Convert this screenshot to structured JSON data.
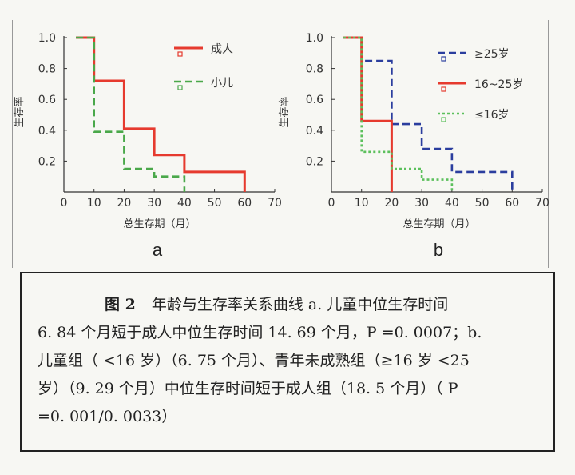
{
  "chart_data": [
    {
      "id": "a",
      "type": "line",
      "step": true,
      "panel_label": "a",
      "title": "",
      "xlabel": "总生存期（月）",
      "ylabel": "生存率",
      "xlim": [
        0,
        70
      ],
      "ylim": [
        0,
        1.0
      ],
      "x_ticks": [
        0,
        10,
        20,
        30,
        40,
        50,
        60,
        70
      ],
      "y_ticks": [
        0.2,
        0.4,
        0.6,
        0.8,
        1.0
      ],
      "x_tick_labels": [
        "0",
        "10",
        "20",
        "30",
        "40",
        "50",
        "60",
        "70"
      ],
      "y_tick_labels": [
        "0.2",
        "0.4",
        "0.6",
        "0.8",
        "1.0"
      ],
      "grid": false,
      "legend_position": "top-right",
      "series": [
        {
          "name": "成人",
          "color": "#e63a2e",
          "dash": "solid",
          "x": [
            4,
            10,
            10,
            20,
            20,
            30,
            30,
            40,
            40,
            60,
            60
          ],
          "y": [
            1.0,
            1.0,
            0.72,
            0.72,
            0.41,
            0.41,
            0.24,
            0.24,
            0.13,
            0.13,
            0
          ]
        },
        {
          "name": "小儿",
          "color": "#4aa84a",
          "dash": "dashed",
          "x": [
            4,
            10,
            10,
            20,
            20,
            30,
            30,
            40,
            40
          ],
          "y": [
            1.0,
            1.0,
            0.39,
            0.39,
            0.15,
            0.15,
            0.1,
            0.1,
            0
          ]
        }
      ]
    },
    {
      "id": "b",
      "type": "line",
      "step": true,
      "panel_label": "b",
      "title": "",
      "xlabel": "总生存期（月）",
      "ylabel": "生存率",
      "xlim": [
        0,
        70
      ],
      "ylim": [
        0,
        1.0
      ],
      "x_ticks": [
        0,
        10,
        20,
        30,
        40,
        50,
        60,
        70
      ],
      "y_ticks": [
        0.2,
        0.4,
        0.6,
        0.8,
        1.0
      ],
      "x_tick_labels": [
        "0",
        "10",
        "20",
        "30",
        "40",
        "50",
        "60",
        "70"
      ],
      "y_tick_labels": [
        "0.2",
        "0.4",
        "0.6",
        "0.8",
        "1.0"
      ],
      "grid": false,
      "legend_position": "top-right",
      "series": [
        {
          "name": "≥25岁",
          "color": "#2b3e9e",
          "dash": "dashed",
          "x": [
            4,
            10,
            10,
            20,
            20,
            30,
            30,
            40,
            40,
            60,
            60
          ],
          "y": [
            1.0,
            1.0,
            0.85,
            0.85,
            0.44,
            0.44,
            0.28,
            0.28,
            0.13,
            0.13,
            0
          ]
        },
        {
          "name": "16~25岁",
          "color": "#e63a2e",
          "dash": "solid",
          "x": [
            4,
            10,
            10,
            20,
            20
          ],
          "y": [
            1.0,
            1.0,
            0.46,
            0.46,
            0
          ]
        },
        {
          "name": "≤16岁",
          "color": "#5cc05c",
          "dash": "dotted",
          "x": [
            4,
            10,
            10,
            20,
            20,
            30,
            30,
            40,
            40
          ],
          "y": [
            1.0,
            1.0,
            0.26,
            0.26,
            0.15,
            0.15,
            0.08,
            0.08,
            0
          ]
        }
      ]
    }
  ],
  "caption": {
    "lead": "图 2",
    "lines": [
      "年龄与生存率关系曲线 a. 儿童中位生存时间",
      "6. 84 个月短于成人中位生存时间 14. 69 个月，P =0. 0007；b.",
      "儿童组（ <16 岁）（6. 75 个月）、青年未成熟组（≥16 岁 <25",
      "岁）（9. 29 个月）中位生存时间短于成人组（18. 5 个月）（ P",
      "=0. 001/0. 0033）"
    ]
  }
}
